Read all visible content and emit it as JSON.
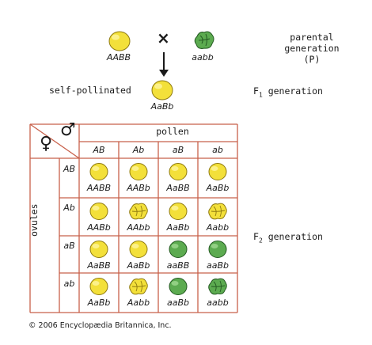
{
  "parents": {
    "left_genotype": "AABB",
    "right_genotype": "aabb",
    "cross_symbol": "×",
    "parental_label_line1": "parental",
    "parental_label_line2": "generation",
    "parental_label_line3": "(P)"
  },
  "f1": {
    "self_pollinated_label": "self-pollinated",
    "genotype": "AaBb",
    "generation_label_prefix": "F",
    "generation_label_sub": "1",
    "generation_label_suffix": " generation"
  },
  "punnett": {
    "female_symbol": "♀",
    "male_symbol": "♂",
    "pollen_label": "pollen",
    "ovules_label": "ovules",
    "pollen_gametes": [
      "AB",
      "Ab",
      "aB",
      "ab"
    ],
    "ovule_gametes": [
      "AB",
      "Ab",
      "aB",
      "ab"
    ],
    "cells": [
      [
        {
          "g": "AABB",
          "color": "yellow",
          "shape": "round"
        },
        {
          "g": "AABb",
          "color": "yellow",
          "shape": "round"
        },
        {
          "g": "AaBB",
          "color": "yellow",
          "shape": "round"
        },
        {
          "g": "AaBb",
          "color": "yellow",
          "shape": "round"
        }
      ],
      [
        {
          "g": "AABb",
          "color": "yellow",
          "shape": "round"
        },
        {
          "g": "AAbb",
          "color": "yellow",
          "shape": "wrinkled"
        },
        {
          "g": "AaBb",
          "color": "yellow",
          "shape": "round"
        },
        {
          "g": "Aabb",
          "color": "yellow",
          "shape": "wrinkled"
        }
      ],
      [
        {
          "g": "AaBB",
          "color": "yellow",
          "shape": "round"
        },
        {
          "g": "AaBb",
          "color": "yellow",
          "shape": "round"
        },
        {
          "g": "aaBB",
          "color": "green",
          "shape": "round"
        },
        {
          "g": "aaBb",
          "color": "green",
          "shape": "round"
        }
      ],
      [
        {
          "g": "AaBb",
          "color": "yellow",
          "shape": "round"
        },
        {
          "g": "Aabb",
          "color": "yellow",
          "shape": "wrinkled"
        },
        {
          "g": "aaBb",
          "color": "green",
          "shape": "round"
        },
        {
          "g": "aabb",
          "color": "green",
          "shape": "wrinkled"
        }
      ]
    ]
  },
  "f2": {
    "generation_label_prefix": "F",
    "generation_label_sub": "2",
    "generation_label_suffix": " generation"
  },
  "copyright": "© 2006 Encyclopædia Britannica, Inc.",
  "colors": {
    "yellow_pea": "#f3e03a",
    "green_pea": "#5cab50",
    "grid": "#c8604a"
  }
}
